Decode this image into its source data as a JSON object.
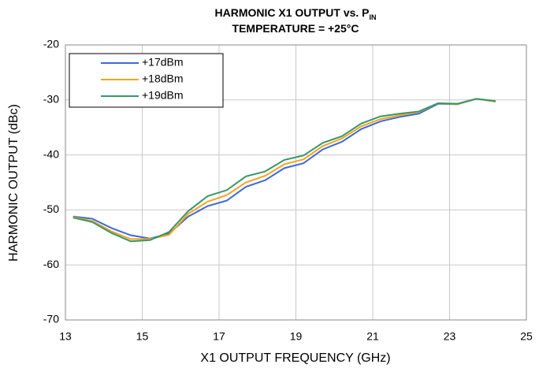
{
  "chart_data": {
    "type": "line",
    "title": "HARMONIC X1 OUTPUT vs. P",
    "title_subscript": "IN",
    "subtitle": "TEMPERATURE = +25°C",
    "x_label": "X1 OUTPUT FREQUENCY (GHz)",
    "y_label": "HARMONIC OUTPUT (dBc)",
    "x": [
      13.2,
      13.7,
      14.2,
      14.7,
      15.2,
      15.7,
      16.2,
      16.7,
      17.2,
      17.7,
      18.2,
      18.7,
      19.2,
      19.7,
      20.2,
      20.7,
      21.2,
      21.7,
      22.2,
      22.7,
      23.2,
      23.7,
      24.2
    ],
    "series": [
      {
        "name": "+17dBm",
        "color": "#3d6ad8",
        "values": [
          -51.2,
          -51.6,
          -53.3,
          -54.6,
          -55.2,
          -54.3,
          -51.2,
          -49.3,
          -48.3,
          -45.8,
          -44.6,
          -42.4,
          -41.5,
          -39.0,
          -37.6,
          -35.3,
          -33.9,
          -33.1,
          -32.5,
          -30.7,
          -30.8,
          -29.8,
          -30.3
        ]
      },
      {
        "name": "+18dBm",
        "color": "#f5a31c",
        "values": [
          -51.3,
          -52.0,
          -53.9,
          -55.3,
          -55.3,
          -54.5,
          -50.7,
          -48.5,
          -47.3,
          -45.0,
          -43.8,
          -41.7,
          -40.8,
          -38.4,
          -37.0,
          -34.8,
          -33.5,
          -32.8,
          -32.2,
          -30.6,
          -30.8,
          -29.8,
          -30.3
        ]
      },
      {
        "name": "+19dBm",
        "color": "#3a9668",
        "values": [
          -51.4,
          -52.2,
          -54.2,
          -55.7,
          -55.5,
          -54.0,
          -50.2,
          -47.5,
          -46.4,
          -43.9,
          -43.0,
          -40.9,
          -40.1,
          -37.8,
          -36.6,
          -34.3,
          -33.0,
          -32.5,
          -32.1,
          -30.6,
          -30.7,
          -29.8,
          -30.2
        ]
      }
    ],
    "xlim": [
      13,
      25
    ],
    "xticks": [
      13,
      15,
      17,
      19,
      21,
      23,
      25
    ],
    "ylim": [
      -70,
      -20
    ],
    "yticks": [
      -70,
      -60,
      -50,
      -40,
      -30,
      -20
    ],
    "grid": true,
    "legend": "upper left"
  }
}
